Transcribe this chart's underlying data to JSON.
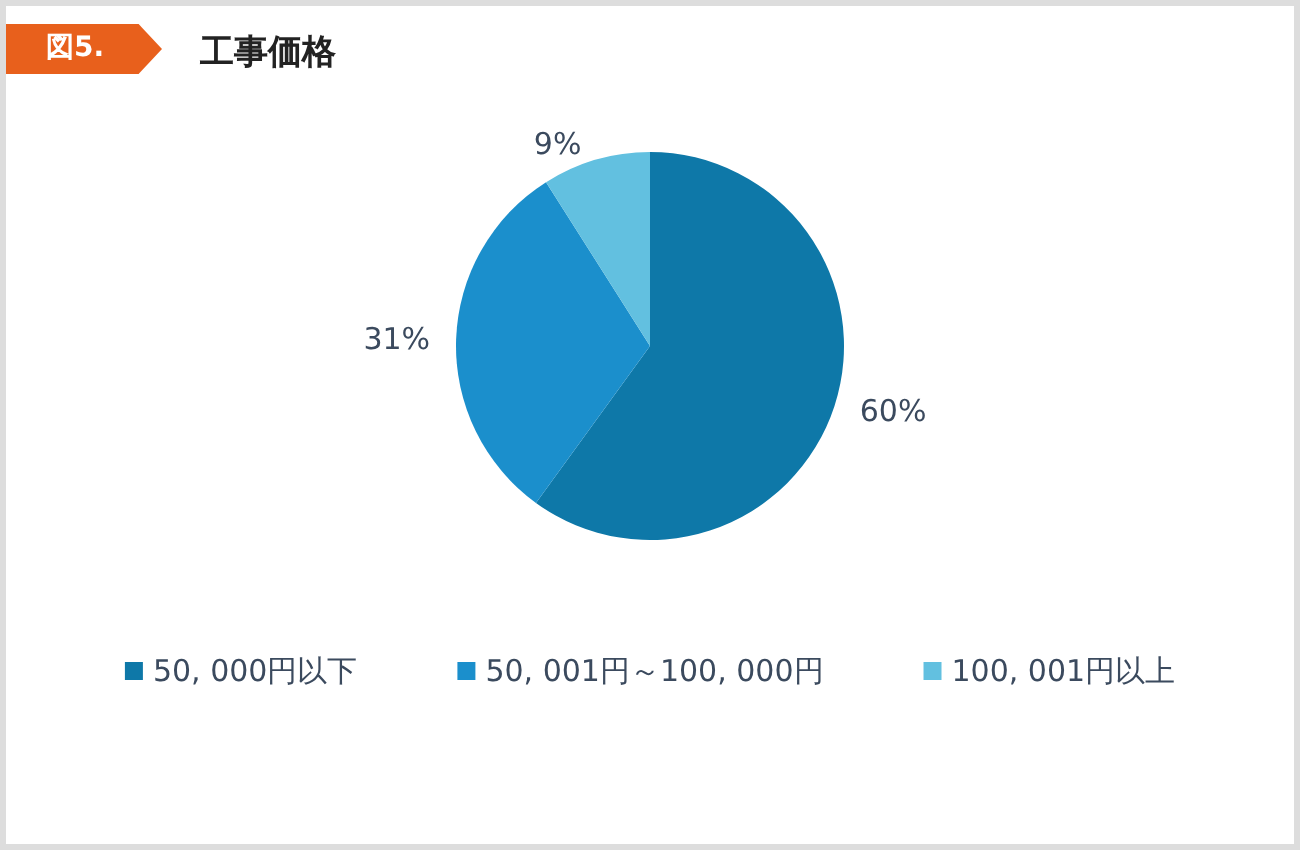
{
  "chart_data": {
    "type": "pie",
    "title": "工事価格",
    "annotations": [
      "図5."
    ],
    "categories": [
      "50, 000円以下",
      "50, 001円～100, 000円",
      "100, 001円以上"
    ],
    "values": [
      60,
      31,
      9
    ],
    "colors": [
      "#0e78a8",
      "#1b8fcc",
      "#62c0e0"
    ],
    "legend": "bottom",
    "value_labels": [
      "60%",
      "31%",
      "9%"
    ]
  }
}
